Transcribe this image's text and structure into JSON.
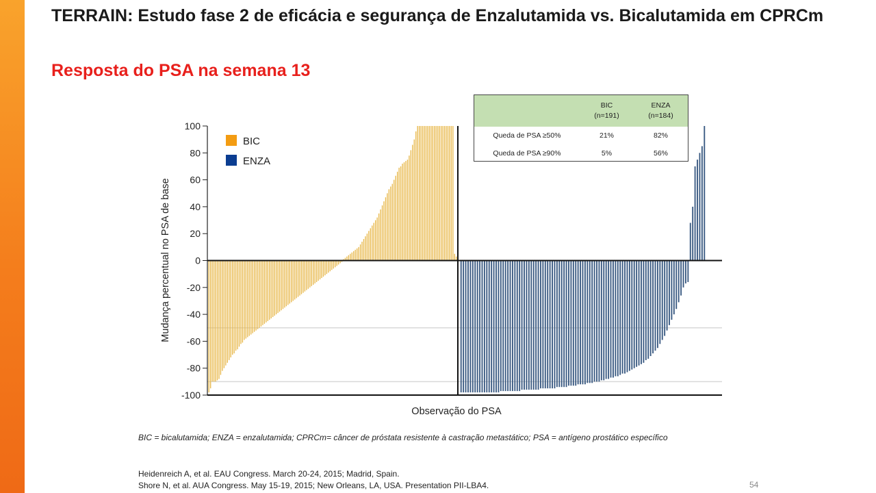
{
  "slide": {
    "title": "TERRAIN: Estudo fase 2 de eficácia e segurança de Enzalutamida vs. Bicalutamida em CPRCm",
    "subtitle": "Resposta do PSA na semana 13",
    "accent_color": "#f47d1c",
    "subtitle_color": "#e8201c",
    "footnote": "BIC = bicalutamida; ENZA = enzalutamida;  CPRCm= câncer de próstata resistente à castração metastático;  PSA = antígeno prostático específico",
    "references": [
      "Heidenreich A, et al. EAU Congress. March 20-24, 2015; Madrid, Spain.",
      "Shore N, et al. AUA Congress. May 15-19, 2015; New Orleans, LA, USA. Presentation PII-LBA4."
    ],
    "page_number": "54"
  },
  "table": {
    "header": [
      "",
      "BIC\n(n=191)",
      "ENZA\n(n=184)"
    ],
    "col_bic_l1": "BIC",
    "col_bic_l2": "(n=191)",
    "col_enza_l1": "ENZA",
    "col_enza_l2": "(n=184)",
    "rows": [
      {
        "label": "Queda de PSA ≥50%",
        "bic": "21%",
        "enza": "82%"
      },
      {
        "label": "Queda de PSA ≥90%",
        "bic": "5%",
        "enza": "56%"
      }
    ],
    "header_color": "#c4dfb2"
  },
  "chart_data": {
    "type": "bar",
    "title": "Resposta do PSA na semana 13",
    "xlabel": "Observação do PSA",
    "ylabel": "Mudança percentual no PSA de base",
    "ylim": [
      -100,
      100
    ],
    "yticks": [
      "100",
      "80",
      "60",
      "40",
      "20",
      "0",
      "-20",
      "-40",
      "-60",
      "-80",
      "-100"
    ],
    "legend_position": "top-left",
    "reference_lines": [
      -50,
      -90
    ],
    "series": [
      {
        "name": "BIC",
        "color": "#e8b84a",
        "legend_color": "#f39c12",
        "values": [
          -98,
          -95,
          -90,
          -90,
          -90,
          -89,
          -88,
          -85,
          -82,
          -80,
          -78,
          -76,
          -74,
          -72,
          -70,
          -69,
          -67,
          -66,
          -64,
          -62,
          -61,
          -59,
          -58,
          -57,
          -56,
          -55,
          -54,
          -53,
          -52,
          -51,
          -50,
          -49,
          -48,
          -47,
          -46,
          -45,
          -44,
          -43,
          -42,
          -41,
          -40,
          -39,
          -38,
          -37,
          -36,
          -35,
          -34,
          -33,
          -32,
          -31,
          -30,
          -29,
          -28,
          -27,
          -26,
          -25,
          -24,
          -23,
          -22,
          -21,
          -20,
          -19,
          -18,
          -17,
          -16,
          -15,
          -14,
          -13,
          -12,
          -11,
          -10,
          -9,
          -8,
          -7,
          -6,
          -5,
          -4,
          -3,
          -2,
          -1,
          1,
          2,
          3,
          4,
          5,
          6,
          7,
          8,
          9,
          10,
          12,
          14,
          16,
          18,
          20,
          22,
          24,
          26,
          28,
          30,
          32,
          35,
          38,
          41,
          44,
          47,
          50,
          53,
          55,
          57,
          60,
          63,
          66,
          69,
          70,
          72,
          73,
          74,
          75,
          78,
          82,
          86,
          90,
          96,
          100,
          100,
          100,
          100,
          100,
          100,
          100,
          100,
          100,
          100,
          100,
          100,
          100,
          100,
          100,
          100,
          100,
          100,
          100,
          100,
          100,
          100,
          5,
          3
        ]
      },
      {
        "name": "ENZA",
        "color": "#3a5a82",
        "legend_color": "#0b3d91",
        "values": [
          -98,
          -98,
          -98,
          -98,
          -98,
          -98,
          -98,
          -98,
          -98,
          -98,
          -98,
          -98,
          -98,
          -98,
          -98,
          -98,
          -98,
          -97,
          -97,
          -97,
          -97,
          -97,
          -97,
          -97,
          -97,
          -97,
          -96,
          -96,
          -96,
          -96,
          -96,
          -96,
          -96,
          -96,
          -95,
          -95,
          -95,
          -95,
          -95,
          -95,
          -95,
          -94,
          -94,
          -94,
          -94,
          -94,
          -93,
          -93,
          -93,
          -93,
          -92,
          -92,
          -92,
          -92,
          -91,
          -91,
          -91,
          -90,
          -90,
          -90,
          -89,
          -89,
          -88,
          -88,
          -87,
          -87,
          -86,
          -86,
          -85,
          -84,
          -84,
          -83,
          -82,
          -81,
          -80,
          -79,
          -78,
          -77,
          -76,
          -74,
          -73,
          -71,
          -69,
          -67,
          -65,
          -62,
          -59,
          -56,
          -52,
          -48,
          -44,
          -40,
          -36,
          -31,
          -26,
          -20,
          -17,
          -16,
          28,
          40,
          70,
          75,
          80,
          85,
          100
        ]
      }
    ]
  }
}
